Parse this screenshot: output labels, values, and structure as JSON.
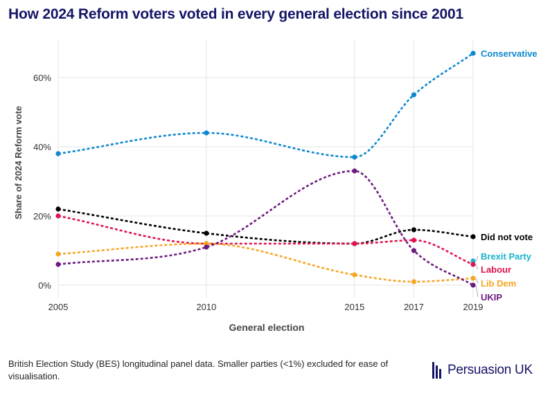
{
  "title": "How 2024 Reform voters voted in every general election since 2001",
  "footer": "British Election Study (BES) longitudinal panel data. Smaller parties (<1%) excluded for ease of visualisation.",
  "brand": "Persuasion UK",
  "chart_data": {
    "type": "line",
    "xlabel": "General election",
    "ylabel": "Share of 2024 Reform vote",
    "x": [
      2005,
      2010,
      2015,
      2017,
      2019
    ],
    "x_tick_labels": [
      "2005",
      "2010",
      "2015",
      "2017",
      "2019"
    ],
    "xlim": [
      2005,
      2019
    ],
    "ylim": [
      0,
      70
    ],
    "y_ticks": [
      0,
      20,
      40,
      60
    ],
    "y_tick_labels": [
      "0%",
      "20%",
      "40%",
      "60%"
    ],
    "grid": true,
    "legend": "direct labels at right end of lines",
    "series": [
      {
        "name": "Conservative",
        "color": "#0d87cf",
        "points": [
          [
            2005,
            38
          ],
          [
            2010,
            44
          ],
          [
            2015,
            37
          ],
          [
            2017,
            55
          ],
          [
            2019,
            67
          ]
        ]
      },
      {
        "name": "Did not vote",
        "color": "#000000",
        "points": [
          [
            2005,
            22
          ],
          [
            2010,
            15
          ],
          [
            2015,
            12
          ],
          [
            2017,
            16
          ],
          [
            2019,
            14
          ]
        ]
      },
      {
        "name": "Brexit Party",
        "color": "#16b4cc",
        "points": [
          [
            2019,
            7
          ]
        ]
      },
      {
        "name": "Labour",
        "color": "#e0134d",
        "points": [
          [
            2005,
            20
          ],
          [
            2010,
            12
          ],
          [
            2015,
            12
          ],
          [
            2017,
            13
          ],
          [
            2019,
            6
          ]
        ]
      },
      {
        "name": "Lib Dem",
        "color": "#f5a623",
        "points": [
          [
            2005,
            9
          ],
          [
            2010,
            12
          ],
          [
            2015,
            3
          ],
          [
            2017,
            1
          ],
          [
            2019,
            2
          ]
        ]
      },
      {
        "name": "UKIP",
        "color": "#6d1a80",
        "points": [
          [
            2005,
            6
          ],
          [
            2010,
            11
          ],
          [
            2015,
            33
          ],
          [
            2017,
            10
          ],
          [
            2019,
            0
          ]
        ]
      }
    ]
  }
}
